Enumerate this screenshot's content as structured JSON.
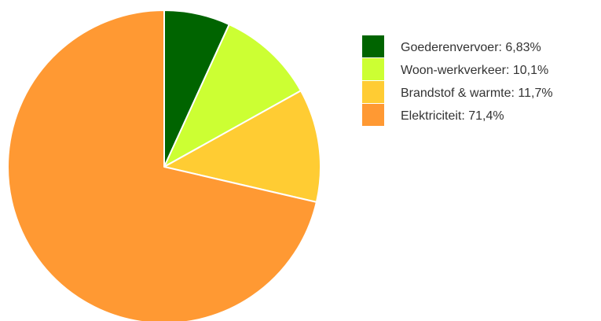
{
  "chart_data": {
    "type": "pie",
    "title": "",
    "legend_position": "right",
    "start_angle_deg": 0,
    "direction": "clockwise",
    "slices": [
      {
        "label": "Goederenvervoer",
        "value": 6.83,
        "display": "6,83%",
        "color": "#006400"
      },
      {
        "label": "Woon-werkverkeer",
        "value": 10.1,
        "display": "10,1%",
        "color": "#ccff33"
      },
      {
        "label": "Brandstof & warmte",
        "value": 11.7,
        "display": "11,7%",
        "color": "#ffcc33"
      },
      {
        "label": "Elektriciteit",
        "value": 71.4,
        "display": "71,4%",
        "color": "#ff9933"
      }
    ]
  }
}
